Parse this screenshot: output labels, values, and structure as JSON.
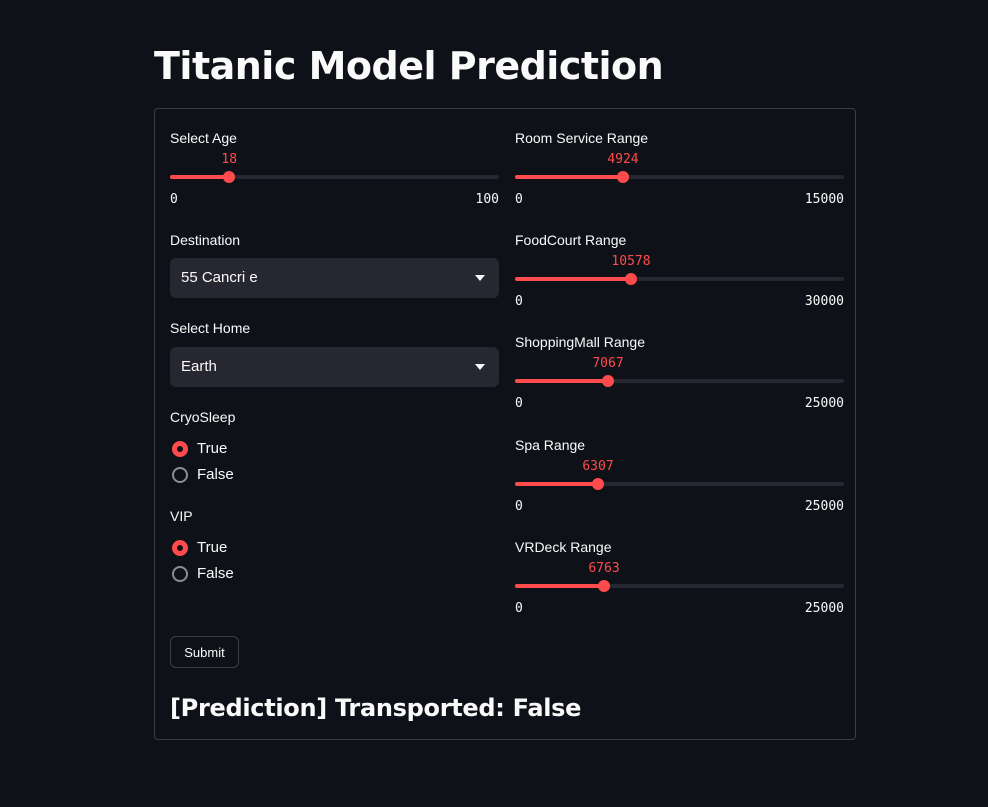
{
  "title": "Titanic Model Prediction",
  "colors": {
    "accent": "#ff4b4b",
    "background": "#0e1117",
    "widget_bg": "#262730",
    "text": "#fafafa"
  },
  "form": {
    "age": {
      "label": "Select Age",
      "value": 18,
      "min": 0,
      "max": 100,
      "value_text": "18",
      "min_text": "0",
      "max_text": "100"
    },
    "destination": {
      "label": "Destination",
      "value": "55 Cancri e",
      "icon": "chevron-down-icon"
    },
    "home": {
      "label": "Select Home",
      "value": "Earth",
      "icon": "chevron-down-icon"
    },
    "cryosleep": {
      "label": "CryoSleep",
      "options": [
        "True",
        "False"
      ],
      "selected": "True"
    },
    "vip": {
      "label": "VIP",
      "options": [
        "True",
        "False"
      ],
      "selected": "True"
    },
    "room_service": {
      "label": "Room Service Range",
      "value": 4924,
      "min": 0,
      "max": 15000,
      "value_text": "4924",
      "min_text": "0",
      "max_text": "15000"
    },
    "food_court": {
      "label": "FoodCourt Range",
      "value": 10578,
      "min": 0,
      "max": 30000,
      "value_text": "10578",
      "min_text": "0",
      "max_text": "30000"
    },
    "shopping_mall": {
      "label": "ShoppingMall Range",
      "value": 7067,
      "min": 0,
      "max": 25000,
      "value_text": "7067",
      "min_text": "0",
      "max_text": "25000"
    },
    "spa": {
      "label": "Spa Range",
      "value": 6307,
      "min": 0,
      "max": 25000,
      "value_text": "6307",
      "min_text": "0",
      "max_text": "25000"
    },
    "vrdeck": {
      "label": "VRDeck Range",
      "value": 6763,
      "min": 0,
      "max": 25000,
      "value_text": "6763",
      "min_text": "0",
      "max_text": "25000"
    },
    "submit_label": "Submit"
  },
  "result": {
    "text": "[Prediction] Transported: False"
  }
}
